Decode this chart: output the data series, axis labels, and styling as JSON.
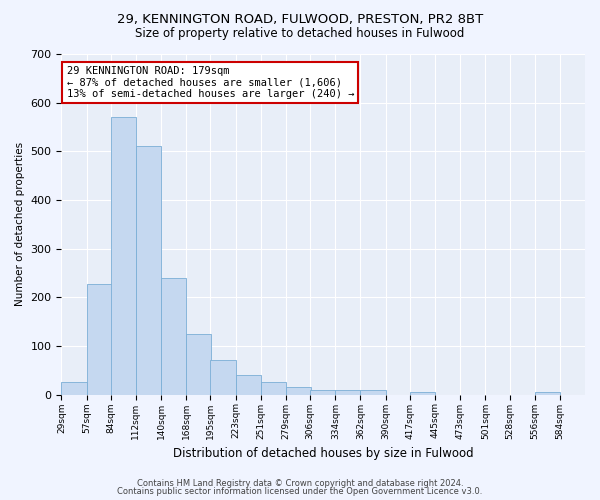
{
  "title1": "29, KENNINGTON ROAD, FULWOOD, PRESTON, PR2 8BT",
  "title2": "Size of property relative to detached houses in Fulwood",
  "xlabel": "Distribution of detached houses by size in Fulwood",
  "ylabel": "Number of detached properties",
  "bar_color": "#c5d8f0",
  "bar_edge_color": "#7aaed6",
  "background_color": "#e8eef8",
  "grid_color": "#ffffff",
  "annotation_text": "29 KENNINGTON ROAD: 179sqm\n← 87% of detached houses are smaller (1,606)\n13% of semi-detached houses are larger (240) →",
  "annotation_box_color": "#ffffff",
  "annotation_border_color": "#cc0000",
  "footnote1": "Contains HM Land Registry data © Crown copyright and database right 2024.",
  "footnote2": "Contains public sector information licensed under the Open Government Licence v3.0.",
  "bins": [
    29,
    57,
    84,
    112,
    140,
    168,
    195,
    223,
    251,
    279,
    306,
    334,
    362,
    390,
    417,
    445,
    473,
    501,
    528,
    556,
    584
  ],
  "counts": [
    25,
    228,
    570,
    510,
    240,
    125,
    71,
    40,
    25,
    15,
    10,
    10,
    10,
    0,
    5,
    0,
    0,
    0,
    0,
    5
  ],
  "ylim": [
    0,
    700
  ],
  "yticks": [
    0,
    100,
    200,
    300,
    400,
    500,
    600,
    700
  ]
}
